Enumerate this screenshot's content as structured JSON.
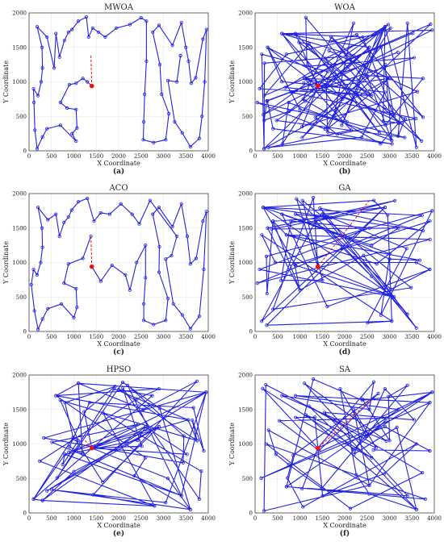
{
  "figure": {
    "panels": [
      {
        "title": "MWOA",
        "letter": "(a)",
        "id": "mwoa"
      },
      {
        "title": "WOA",
        "letter": "(b)",
        "id": "woa"
      },
      {
        "title": "ACO",
        "letter": "(c)",
        "id": "aco"
      },
      {
        "title": "GA",
        "letter": "(d)",
        "id": "ga"
      },
      {
        "title": "HPSO",
        "letter": "(e)",
        "id": "hpso"
      },
      {
        "title": "SA",
        "letter": "(f)",
        "id": "sa"
      }
    ],
    "xlabel": "X Coordinate",
    "ylabel": "Y Coordinate",
    "xticks": [
      0,
      500,
      1000,
      1500,
      2000,
      2500,
      3000,
      3500,
      4000
    ],
    "yticks": [
      0,
      500,
      1000,
      1500,
      2000
    ],
    "colors": {
      "route": "#2222dd",
      "start": "#ee1111",
      "return": "#ee1111",
      "grid": "#e6e6e6",
      "axis": "#444444"
    }
  },
  "chart_data": {
    "type": "line",
    "xlim": [
      0,
      4000
    ],
    "ylim": [
      0,
      2000
    ],
    "grid": true,
    "start_point": [
      1400,
      940
    ],
    "cities": [
      [
        1400,
        940
      ],
      [
        1100,
        1050
      ],
      [
        900,
        960
      ],
      [
        750,
        700
      ],
      [
        1000,
        600
      ],
      [
        1050,
        350
      ],
      [
        1000,
        200
      ],
      [
        700,
        380
      ],
      [
        400,
        320
      ],
      [
        300,
        180
      ],
      [
        200,
        30
      ],
      [
        100,
        200
      ],
      [
        50,
        700
      ],
      [
        100,
        900
      ],
      [
        200,
        800
      ],
      [
        250,
        1000
      ],
      [
        300,
        1200
      ],
      [
        280,
        1500
      ],
      [
        180,
        1800
      ],
      [
        400,
        1600
      ],
      [
        600,
        1700
      ],
      [
        700,
        1400
      ],
      [
        800,
        1600
      ],
      [
        900,
        1700
      ],
      [
        950,
        1750
      ],
      [
        1100,
        1880
      ],
      [
        1300,
        1940
      ],
      [
        1350,
        1600
      ],
      [
        1500,
        1700
      ],
      [
        1700,
        1650
      ],
      [
        1900,
        1800
      ],
      [
        2200,
        1850
      ],
      [
        2400,
        1650
      ],
      [
        2550,
        1500
      ],
      [
        2600,
        1250
      ],
      [
        2600,
        800
      ],
      [
        2550,
        400
      ],
      [
        2550,
        150
      ],
      [
        2800,
        100
      ],
      [
        3050,
        150
      ],
      [
        3100,
        500
      ],
      [
        2900,
        850
      ],
      [
        2900,
        1250
      ],
      [
        2750,
        1700
      ],
      [
        2900,
        1800
      ],
      [
        3200,
        1500
      ],
      [
        3400,
        1850
      ],
      [
        3550,
        1350
      ],
      [
        3600,
        1000
      ],
      [
        3750,
        1050
      ],
      [
        3900,
        1600
      ],
      [
        3950,
        1750
      ],
      [
        3900,
        900
      ],
      [
        3800,
        200
      ],
      [
        3600,
        50
      ],
      [
        3400,
        250
      ],
      [
        3200,
        400
      ],
      [
        3000,
        1050
      ],
      [
        2650,
        1900
      ],
      [
        1650,
        1450
      ],
      [
        1200,
        1550
      ],
      [
        800,
        850
      ],
      [
        450,
        1000
      ],
      [
        150,
        1400
      ]
    ],
    "series": [
      {
        "id": "mwoa",
        "kind": "tour",
        "return_from": [
          1380,
          1380
        ],
        "values": [
          [
            1400,
            940
          ],
          [
            1300,
            1000
          ],
          [
            1200,
            1050
          ],
          [
            1050,
            980
          ],
          [
            900,
            960
          ],
          [
            700,
            700
          ],
          [
            850,
            620
          ],
          [
            1050,
            600
          ],
          [
            1070,
            330
          ],
          [
            960,
            250
          ],
          [
            1050,
            140
          ],
          [
            700,
            370
          ],
          [
            400,
            320
          ],
          [
            300,
            200
          ],
          [
            180,
            30
          ],
          [
            130,
            300
          ],
          [
            110,
            700
          ],
          [
            100,
            900
          ],
          [
            200,
            800
          ],
          [
            270,
            1000
          ],
          [
            300,
            1200
          ],
          [
            290,
            1500
          ],
          [
            180,
            1800
          ],
          [
            400,
            1650
          ],
          [
            560,
            1200
          ],
          [
            600,
            1700
          ],
          [
            680,
            1360
          ],
          [
            790,
            1600
          ],
          [
            880,
            1720
          ],
          [
            960,
            1760
          ],
          [
            1100,
            1880
          ],
          [
            1280,
            1940
          ],
          [
            1330,
            1650
          ],
          [
            1420,
            1780
          ],
          [
            1550,
            1720
          ],
          [
            1700,
            1650
          ],
          [
            1950,
            1780
          ],
          [
            2250,
            1830
          ],
          [
            2500,
            1930
          ],
          [
            2620,
            1880
          ],
          [
            2620,
            1300
          ],
          [
            2580,
            820
          ],
          [
            2560,
            420
          ],
          [
            2550,
            160
          ],
          [
            2780,
            120
          ],
          [
            3050,
            160
          ],
          [
            3120,
            540
          ],
          [
            2960,
            820
          ],
          [
            2920,
            1250
          ],
          [
            2760,
            1720
          ],
          [
            2900,
            1820
          ],
          [
            3200,
            1530
          ],
          [
            3400,
            1860
          ],
          [
            3500,
            1500
          ],
          [
            3560,
            1300
          ],
          [
            3620,
            980
          ],
          [
            3720,
            1060
          ],
          [
            3880,
            1620
          ],
          [
            3960,
            1760
          ],
          [
            3920,
            1000
          ],
          [
            3860,
            500
          ],
          [
            3800,
            180
          ],
          [
            3600,
            60
          ],
          [
            3420,
            260
          ],
          [
            3250,
            420
          ],
          [
            3100,
            1020
          ],
          [
            3300,
            1000
          ],
          [
            3380,
            1380
          ],
          [
            3380,
            1380
          ]
        ]
      },
      {
        "id": "woa",
        "kind": "random",
        "return_from": [
          1400,
          940
        ],
        "seed": 11,
        "n": 110
      },
      {
        "id": "aco",
        "kind": "tour",
        "return_from": [
          1380,
          1380
        ],
        "values": [
          [
            1400,
            940
          ],
          [
            1600,
            730
          ],
          [
            1850,
            960
          ],
          [
            2150,
            820
          ],
          [
            2250,
            600
          ],
          [
            2400,
            1000
          ],
          [
            2600,
            1250
          ],
          [
            2600,
            780
          ],
          [
            2560,
            400
          ],
          [
            2560,
            160
          ],
          [
            2780,
            100
          ],
          [
            3050,
            160
          ],
          [
            3100,
            480
          ],
          [
            2900,
            860
          ],
          [
            2910,
            1230
          ],
          [
            2760,
            1700
          ],
          [
            2900,
            1800
          ],
          [
            3200,
            1520
          ],
          [
            3400,
            1850
          ],
          [
            3530,
            1380
          ],
          [
            3600,
            980
          ],
          [
            3730,
            1060
          ],
          [
            3880,
            1600
          ],
          [
            3960,
            1740
          ],
          [
            3900,
            900
          ],
          [
            3800,
            220
          ],
          [
            3600,
            40
          ],
          [
            3420,
            240
          ],
          [
            3220,
            400
          ],
          [
            3050,
            1050
          ],
          [
            3180,
            1100
          ],
          [
            3300,
            1380
          ],
          [
            2700,
            1900
          ],
          [
            2460,
            1560
          ],
          [
            2300,
            1700
          ],
          [
            2050,
            1850
          ],
          [
            1800,
            1700
          ],
          [
            1600,
            1720
          ],
          [
            1450,
            1600
          ],
          [
            1300,
            1930
          ],
          [
            1100,
            1880
          ],
          [
            950,
            1760
          ],
          [
            880,
            1660
          ],
          [
            780,
            1580
          ],
          [
            680,
            1380
          ],
          [
            600,
            1700
          ],
          [
            420,
            1620
          ],
          [
            200,
            1800
          ],
          [
            290,
            1500
          ],
          [
            300,
            1220
          ],
          [
            260,
            1000
          ],
          [
            180,
            820
          ],
          [
            100,
            900
          ],
          [
            50,
            680
          ],
          [
            120,
            300
          ],
          [
            200,
            30
          ],
          [
            300,
            180
          ],
          [
            420,
            330
          ],
          [
            720,
            400
          ],
          [
            1000,
            200
          ],
          [
            1070,
            350
          ],
          [
            1050,
            620
          ],
          [
            780,
            700
          ],
          [
            880,
            980
          ],
          [
            1200,
            1060
          ],
          [
            1380,
            1380
          ]
        ]
      },
      {
        "id": "ga",
        "kind": "random",
        "return_from": [
          2550,
          1900
        ],
        "seed": 37,
        "n": 75
      },
      {
        "id": "hpso",
        "kind": "random",
        "return_from": [
          1250,
          1050
        ],
        "seed": 59,
        "n": 78
      },
      {
        "id": "sa",
        "kind": "random",
        "return_from": [
          2600,
          1650
        ],
        "seed": 83,
        "n": 72
      }
    ]
  }
}
